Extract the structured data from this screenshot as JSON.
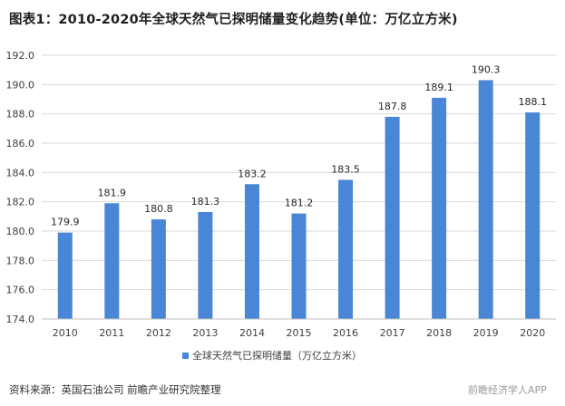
{
  "chart_data": {
    "type": "bar",
    "title": "图表1：2010-2020年全球天然气已探明储量变化趋势(单位：万亿立方米)",
    "categories": [
      "2010",
      "2011",
      "2012",
      "2013",
      "2014",
      "2015",
      "2016",
      "2017",
      "2018",
      "2019",
      "2020"
    ],
    "series": [
      {
        "name": "全球天然气已探明储量（万亿立方米）",
        "values": [
          179.9,
          181.9,
          180.8,
          181.3,
          183.2,
          181.2,
          183.5,
          187.8,
          189.1,
          190.3,
          188.1
        ],
        "color": "#4a86d6"
      }
    ],
    "ylim": [
      174.0,
      192.0
    ],
    "yticks": [
      "174.0",
      "176.0",
      "178.0",
      "180.0",
      "182.0",
      "184.0",
      "186.0",
      "188.0",
      "190.0",
      "192.0"
    ],
    "grid": true,
    "legend_position": "bottom-center",
    "source": "资料来源：英国石油公司 前瞻产业研究院整理",
    "watermark": "前瞻经济学人APP"
  }
}
